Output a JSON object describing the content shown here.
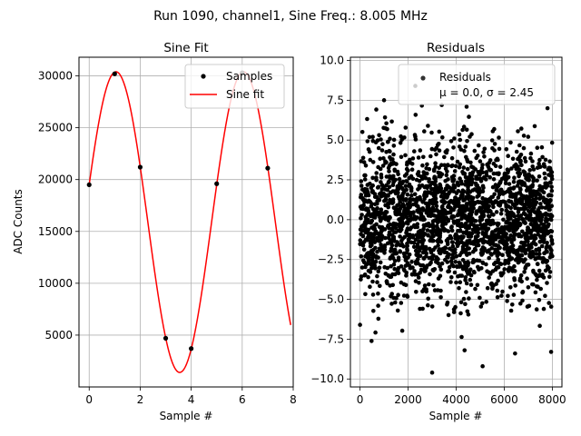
{
  "chart_data": {
    "suptitle": "Run 1090, channel1, Sine Freq.: 8.005 MHz",
    "panels": [
      {
        "title": "Sine Fit",
        "type": "line+scatter",
        "xlabel": "Sample #",
        "ylabel": "ADC Counts",
        "xlim": [
          -0.4,
          8.0
        ],
        "ylim": [
          0,
          31800
        ],
        "xticks": [
          0,
          2,
          4,
          6,
          8
        ],
        "yticks": [
          5000,
          10000,
          15000,
          20000,
          25000,
          30000
        ],
        "grid": true,
        "legend_position": "top-right",
        "legend": [
          "Samples",
          "Sine fit"
        ],
        "samples": {
          "name": "Samples",
          "x": [
            0,
            1,
            2,
            3,
            4,
            5,
            6,
            7
          ],
          "y": [
            19500,
            30200,
            21200,
            4700,
            3700,
            19600,
            30300,
            21100
          ]
        },
        "fit": {
          "name": "Sine fit",
          "color": "#ff0000",
          "offset": 15900,
          "amplitude": 14500,
          "period": 5.0,
          "phase_peak_x": 1.05,
          "x_range": [
            0,
            7.9
          ]
        }
      },
      {
        "title": "Residuals",
        "type": "scatter",
        "xlabel": "Sample #",
        "ylabel": "",
        "xlim": [
          -400,
          8400
        ],
        "ylim": [
          -10.5,
          10.2
        ],
        "xticks": [
          0,
          2000,
          4000,
          6000,
          8000
        ],
        "yticks": [
          -10.0,
          -7.5,
          -5.0,
          -2.5,
          0.0,
          2.5,
          5.0,
          7.5,
          10.0
        ],
        "ytick_labels": [
          "−10.0",
          "−7.5",
          "−5.0",
          "−2.5",
          "0.0",
          "2.5",
          "5.0",
          "7.5",
          "10.0"
        ],
        "grid": true,
        "legend_position": "top-right",
        "legend": [
          "Residuals",
          "μ = 0.0, σ = 2.45"
        ],
        "residuals": {
          "name": "Residuals",
          "n_points": 8000,
          "x_range": [
            0,
            8000
          ],
          "mean": 0.0,
          "std": 2.45,
          "notable_outliers": [
            {
              "x": 3000,
              "y": -9.6
            },
            {
              "x": 5100,
              "y": -9.2
            },
            {
              "x": 4350,
              "y": -8.2
            },
            {
              "x": 7950,
              "y": -8.3
            },
            {
              "x": 6450,
              "y": -8.4
            },
            {
              "x": 2300,
              "y": 8.4
            },
            {
              "x": 1000,
              "y": 7.5
            },
            {
              "x": 3400,
              "y": 7.2
            },
            {
              "x": 7800,
              "y": 7.0
            }
          ]
        }
      }
    ]
  }
}
